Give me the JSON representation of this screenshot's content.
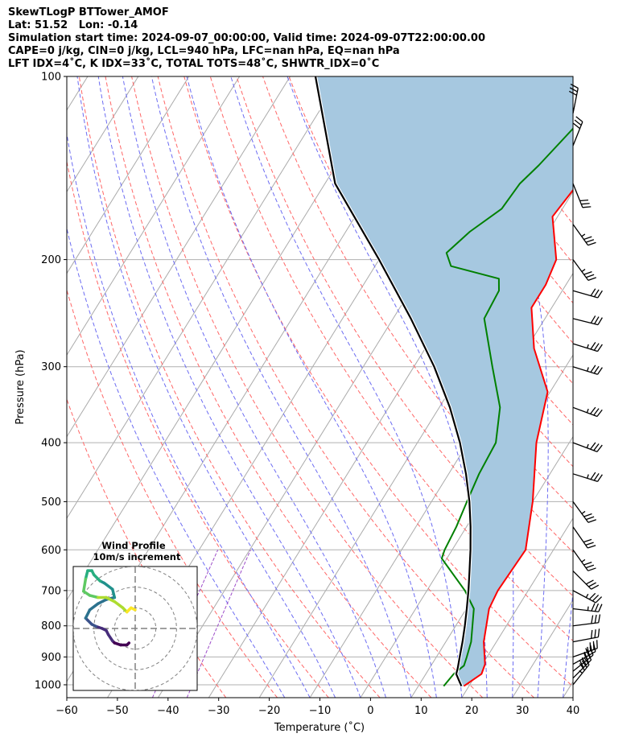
{
  "header": {
    "line1": "SkewTLogP BTTower_AMOF",
    "line2": "Lat: 51.52   Lon: -0.14",
    "line3": "Simulation start time: 2024-09-07_00:00:00, Valid time: 2024-09-07T22:00:00.00",
    "line4": "CAPE=0 j/kg, CIN=0 j/kg, LCL=940 hPa, LFC=nan hPa, EQ=nan hPa",
    "line5": "LFT IDX=4˚C, K IDX=33˚C, TOTAL TOTS=48˚C, SHWTR_IDX=0˚C"
  },
  "chart_data": {
    "type": "skew-t log-p",
    "xlabel": "Temperature (˚C)",
    "ylabel": "Pressure (hPa)",
    "xlim": [
      -60,
      40
    ],
    "ylim": [
      1050,
      100
    ],
    "xticks": [
      "−60",
      "−50",
      "−40",
      "−30",
      "−20",
      "−10",
      "0",
      "10",
      "20",
      "30",
      "40"
    ],
    "xtick_values": [
      -60,
      -50,
      -40,
      -30,
      -20,
      -10,
      0,
      10,
      20,
      30,
      40
    ],
    "yticks": [
      "1000",
      "900",
      "800",
      "700",
      "600",
      "500",
      "400",
      "300",
      "200",
      "100"
    ],
    "ytick_values": [
      1000,
      900,
      800,
      700,
      600,
      500,
      400,
      300,
      200,
      100
    ],
    "grid": true,
    "colors": {
      "temperature": "#ff0000",
      "dewpoint": "#008000",
      "parcel": "#000000",
      "shading": "#a6c8e0",
      "dry_adiabat": "#ff6666",
      "moist_adiabat": "#6c6cf2",
      "mixing_ratio": "#9d4dc9",
      "isotherm": "#aaaaaa"
    },
    "temperature": [
      [
        1005,
        19.0
      ],
      [
        960,
        21.0
      ],
      [
        925,
        20.5
      ],
      [
        850,
        17.5
      ],
      [
        750,
        14.5
      ],
      [
        700,
        14.0
      ],
      [
        600,
        14.5
      ],
      [
        500,
        10.0
      ],
      [
        400,
        3.5
      ],
      [
        330,
        -0.5
      ],
      [
        280,
        -8.5
      ],
      [
        240,
        -14.0
      ],
      [
        220,
        -14.0
      ],
      [
        200,
        -15.0
      ],
      [
        170,
        -21.0
      ],
      [
        150,
        -20.0
      ],
      [
        130,
        -21.0
      ],
      [
        115,
        -20.5
      ],
      [
        100,
        -17.5
      ]
    ],
    "dewpoint": [
      [
        1005,
        15.0
      ],
      [
        960,
        15.5
      ],
      [
        930,
        16.5
      ],
      [
        900,
        16.0
      ],
      [
        850,
        15.0
      ],
      [
        750,
        11.5
      ],
      [
        700,
        7.5
      ],
      [
        620,
        -1.0
      ],
      [
        600,
        -1.5
      ],
      [
        550,
        -2.0
      ],
      [
        500,
        -3.0
      ],
      [
        450,
        -4.0
      ],
      [
        400,
        -4.5
      ],
      [
        350,
        -8.0
      ],
      [
        300,
        -14.5
      ],
      [
        250,
        -22.0
      ],
      [
        225,
        -22.5
      ],
      [
        215,
        -24.0
      ],
      [
        205,
        -35.0
      ],
      [
        195,
        -37.5
      ],
      [
        180,
        -35.5
      ],
      [
        165,
        -32.0
      ],
      [
        150,
        -31.5
      ],
      [
        140,
        -30.0
      ],
      [
        100,
        -24.5
      ]
    ],
    "parcel": [
      [
        1005,
        18.5
      ],
      [
        960,
        16.0
      ],
      [
        940,
        15.6
      ],
      [
        900,
        14.6
      ],
      [
        850,
        13.3
      ],
      [
        800,
        11.8
      ],
      [
        750,
        10.1
      ],
      [
        700,
        8.2
      ],
      [
        650,
        6.0
      ],
      [
        600,
        3.6
      ],
      [
        550,
        0.8
      ],
      [
        500,
        -2.5
      ],
      [
        450,
        -6.6
      ],
      [
        400,
        -11.6
      ],
      [
        350,
        -17.9
      ],
      [
        300,
        -26.0
      ],
      [
        250,
        -36.5
      ],
      [
        200,
        -50.0
      ],
      [
        150,
        -68.0
      ],
      [
        100,
        -85.0
      ]
    ],
    "wind_barbs": [
      {
        "p": 1000,
        "u": 12,
        "v": 15
      },
      {
        "p": 975,
        "u": 14,
        "v": 14
      },
      {
        "p": 950,
        "u": 15,
        "v": 12
      },
      {
        "p": 925,
        "u": 16,
        "v": 9
      },
      {
        "p": 900,
        "u": 17,
        "v": 6
      },
      {
        "p": 850,
        "u": 16,
        "v": 3
      },
      {
        "p": 800,
        "u": 16,
        "v": 2
      },
      {
        "p": 750,
        "u": 17,
        "v": -2
      },
      {
        "p": 700,
        "u": 15,
        "v": -8
      },
      {
        "p": 650,
        "u": 11,
        "v": -11
      },
      {
        "p": 600,
        "u": 10,
        "v": -14
      },
      {
        "p": 550,
        "u": 9,
        "v": -13
      },
      {
        "p": 500,
        "u": 11,
        "v": -15
      },
      {
        "p": 450,
        "u": 16,
        "v": -5
      },
      {
        "p": 400,
        "u": 16,
        "v": -6
      },
      {
        "p": 350,
        "u": 16,
        "v": -6
      },
      {
        "p": 300,
        "u": 16,
        "v": -5
      },
      {
        "p": 275,
        "u": 16,
        "v": -5
      },
      {
        "p": 250,
        "u": 16,
        "v": -4
      },
      {
        "p": 225,
        "u": 14,
        "v": -4
      },
      {
        "p": 200,
        "u": 11,
        "v": -15
      },
      {
        "p": 175,
        "u": 10,
        "v": -14
      },
      {
        "p": 150,
        "u": 6,
        "v": -15
      },
      {
        "p": 130,
        "u": 6,
        "v": 15
      },
      {
        "p": 115,
        "u": 3,
        "v": 15
      }
    ],
    "hodograph": {
      "title": "Wind Profile",
      "subtitle": "10m/s increment",
      "rings": [
        10,
        20,
        30
      ],
      "range": [
        -30,
        30
      ],
      "points": [
        [
          -3,
          -7
        ],
        [
          -4,
          -8
        ],
        [
          -7,
          -8
        ],
        [
          -10,
          -7
        ],
        [
          -11,
          -6
        ],
        [
          -13,
          -3
        ],
        [
          -14,
          -1
        ],
        [
          -16,
          0
        ],
        [
          -19,
          1
        ],
        [
          -21,
          2
        ],
        [
          -23,
          4
        ],
        [
          -24,
          5
        ],
        [
          -22,
          9
        ],
        [
          -18,
          12
        ],
        [
          -14,
          14
        ],
        [
          -10,
          15
        ],
        [
          -11,
          19
        ],
        [
          -15,
          22
        ],
        [
          -17,
          23
        ],
        [
          -20,
          26
        ],
        [
          -21,
          28
        ],
        [
          -23,
          28
        ],
        [
          -24,
          24
        ],
        [
          -25,
          18
        ],
        [
          -22,
          16
        ],
        [
          -18,
          15
        ],
        [
          -14,
          15
        ],
        [
          -10,
          13
        ],
        [
          -6,
          10
        ],
        [
          -4,
          8
        ],
        [
          -3,
          9
        ],
        [
          -2,
          10
        ],
        [
          0,
          9
        ]
      ]
    }
  }
}
